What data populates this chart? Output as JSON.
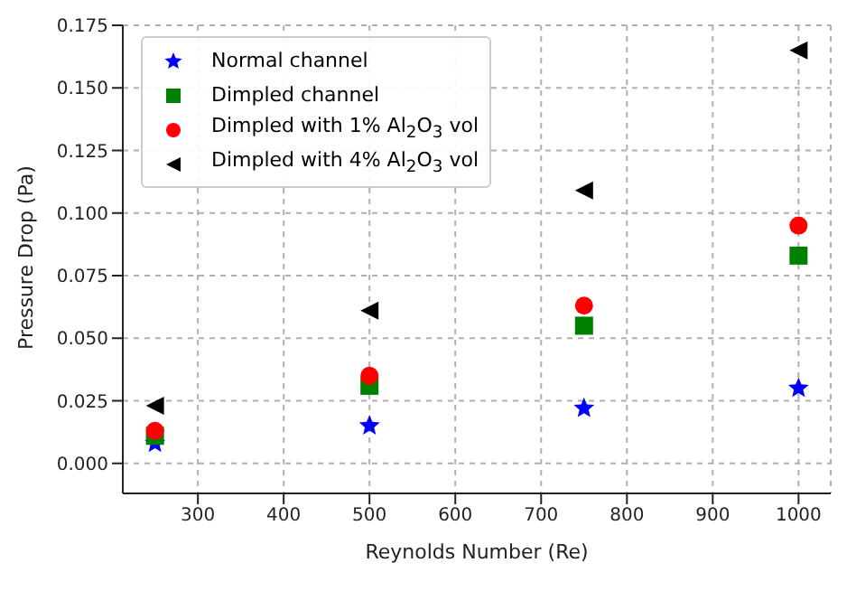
{
  "chart_data": {
    "type": "scatter",
    "xlabel": "Reynolds Number (Re)",
    "ylabel": "Pressure Drop (Pa)",
    "x": [
      250,
      500,
      750,
      1000
    ],
    "series": [
      {
        "name": "Normal channel",
        "color": "#0000ff",
        "marker": "star",
        "values": [
          0.008,
          0.015,
          0.022,
          0.03
        ]
      },
      {
        "name": "Dimpled channel",
        "color": "#008000",
        "marker": "square",
        "values": [
          0.011,
          0.031,
          0.055,
          0.083
        ]
      },
      {
        "name": "Dimpled with 1% Al$_{2}$O$_{3}$ vol",
        "color": "#ff0000",
        "marker": "circle",
        "values": [
          0.013,
          0.035,
          0.063,
          0.095
        ]
      },
      {
        "name": "Dimpled with 4% Al$_{2}$O$_{3}$ vol",
        "color": "#000000",
        "marker": "triangle",
        "values": [
          0.023,
          0.061,
          0.109,
          0.165
        ]
      }
    ],
    "xlim": [
      212.5,
      1037.5
    ],
    "xticks": [
      300,
      400,
      500,
      600,
      700,
      800,
      900,
      1000
    ],
    "ylim": [
      -0.012,
      0.175
    ],
    "yticks": [
      {
        "value": 0,
        "label": "0.000"
      },
      0.025,
      {
        "value": 0.05,
        "label": "0.050"
      },
      0.075,
      {
        "value": 0.1,
        "label": "0.100"
      },
      0.125,
      {
        "value": 0.15,
        "label": "0.150"
      },
      0.175
    ],
    "grid": true,
    "legend": "top left"
  }
}
